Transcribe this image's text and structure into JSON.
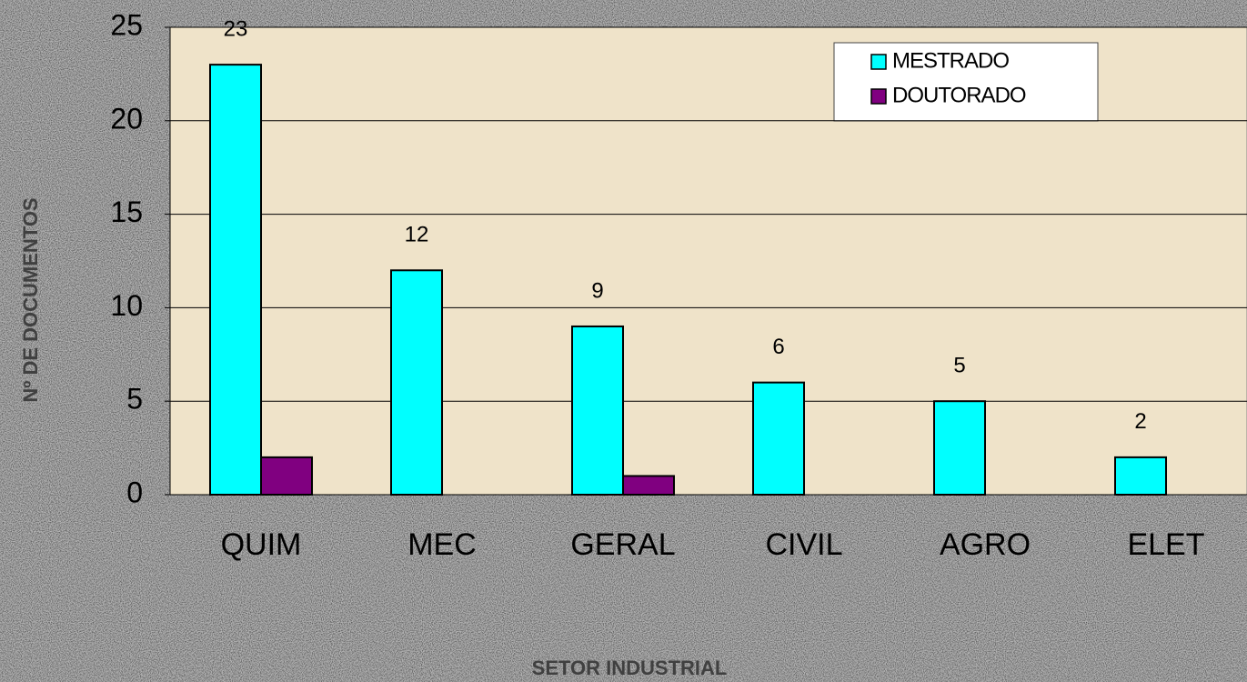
{
  "chart_data": {
    "type": "bar",
    "categories": [
      "QUIM",
      "MEC",
      "GERAL",
      "CIVIL",
      "AGRO",
      "ELET"
    ],
    "series": [
      {
        "name": "MESTRADO",
        "color": "#00ffff",
        "values": [
          23,
          12,
          9,
          6,
          5,
          2
        ],
        "data_labels": true
      },
      {
        "name": "DOUTORADO",
        "color": "#800080",
        "values": [
          2,
          0,
          1,
          0,
          0,
          0
        ],
        "data_labels": false
      }
    ],
    "ylim": [
      0,
      25
    ],
    "yticks": [
      0,
      5,
      10,
      15,
      20,
      25
    ],
    "grid": true,
    "xlabel": "SETOR INDUSTRIAL",
    "ylabel": "Nº DE DOCUMENTOS",
    "legend": "top-right"
  }
}
